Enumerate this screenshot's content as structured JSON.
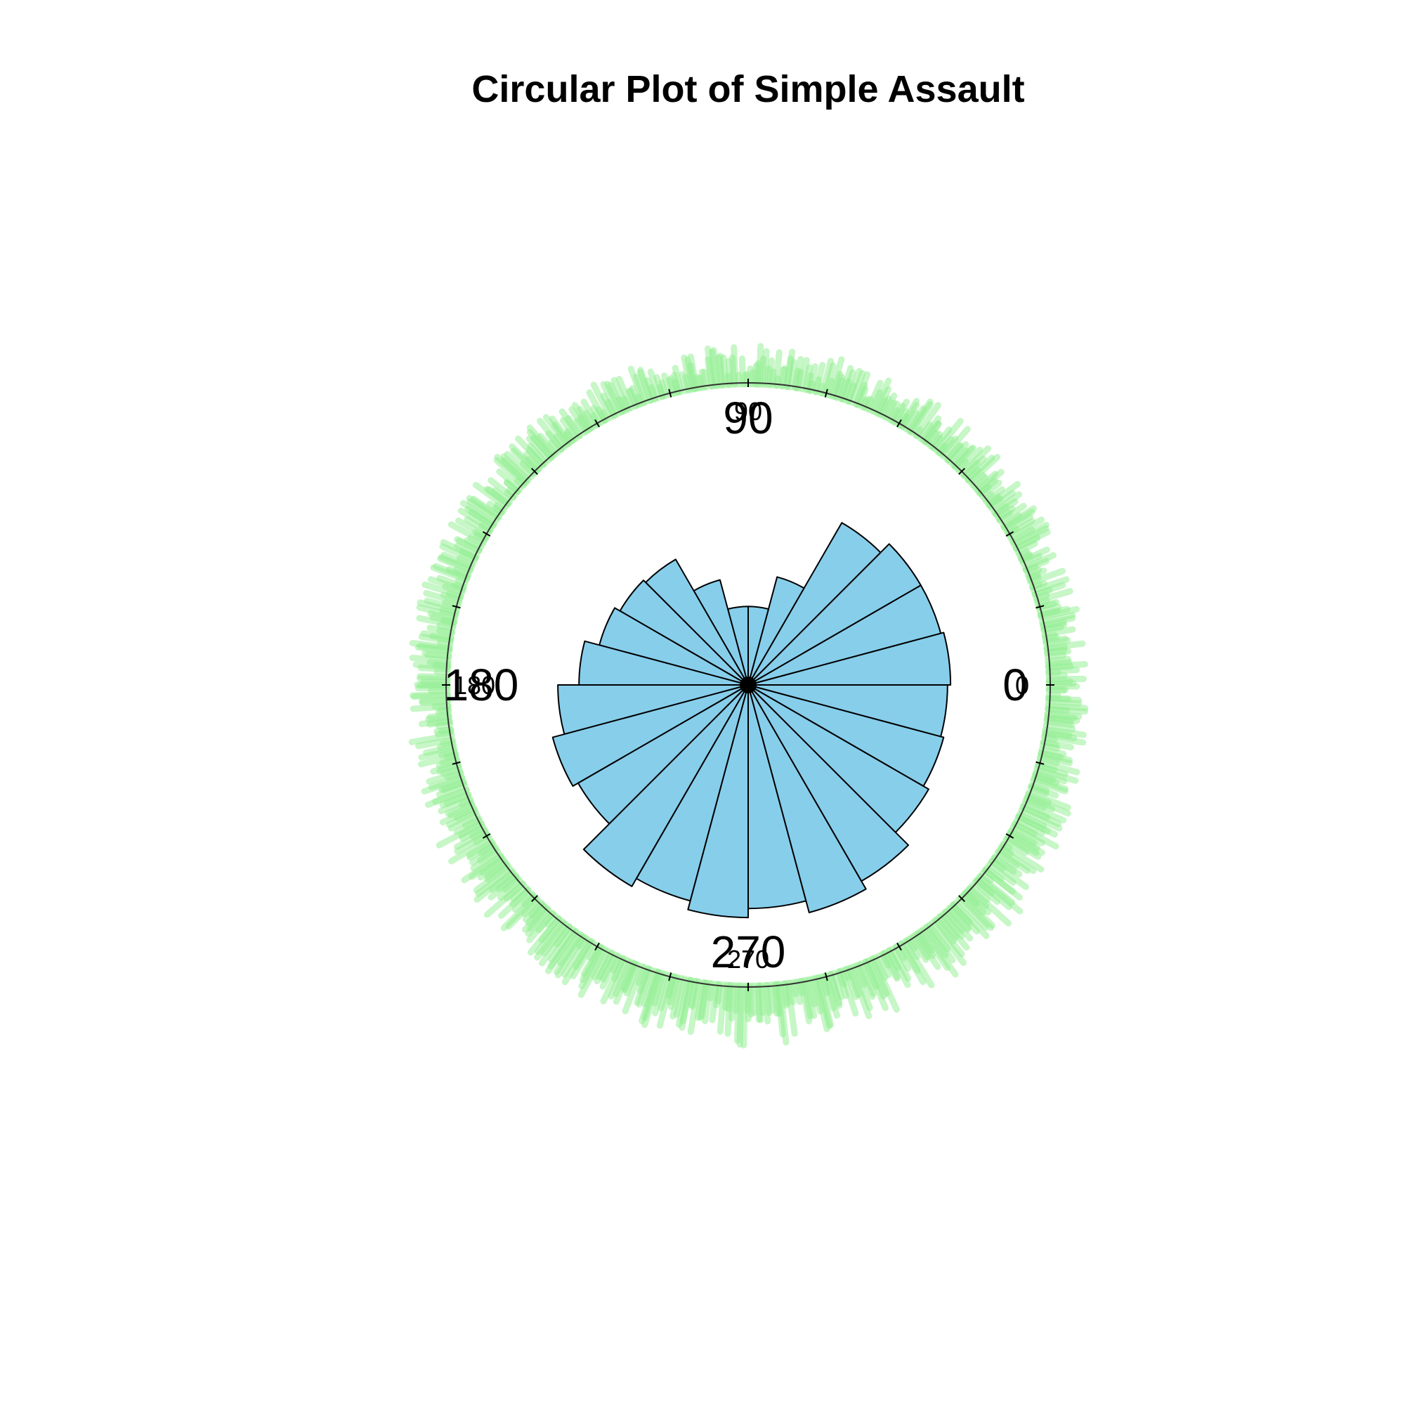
{
  "chart_data": {
    "type": "rose",
    "title": "Circular Plot of Simple Assault",
    "angle_labels": [
      {
        "angle": 0,
        "text": "0"
      },
      {
        "angle": 90,
        "text": "90"
      },
      {
        "angle": 180,
        "text": "180"
      },
      {
        "angle": 270,
        "text": "270"
      }
    ],
    "inner_angle_labels": [
      {
        "angle": 0,
        "text": "0"
      },
      {
        "angle": 90,
        "text": "90"
      },
      {
        "angle": 180,
        "text": "180"
      },
      {
        "angle": 270,
        "text": "270"
      }
    ],
    "bin_width_deg": 15,
    "bins_start_deg": [
      0,
      15,
      30,
      45,
      60,
      75,
      90,
      105,
      120,
      135,
      150,
      165,
      180,
      195,
      210,
      225,
      240,
      255,
      270,
      285,
      300,
      315,
      330,
      345
    ],
    "values": [
      0.67,
      0.66,
      0.66,
      0.62,
      0.37,
      0.26,
      0.26,
      0.36,
      0.48,
      0.49,
      0.51,
      0.56,
      0.63,
      0.67,
      0.65,
      0.77,
      0.74,
      0.77,
      0.74,
      0.78,
      0.75,
      0.69,
      0.67,
      0.66
    ],
    "rlim": [
      0,
      1
    ],
    "tick_step_deg": 15,
    "colors": {
      "bars": "#87ceeb",
      "bar_stroke": "#000000",
      "rug": "#90ee90"
    },
    "rug_description_count": 720
  }
}
